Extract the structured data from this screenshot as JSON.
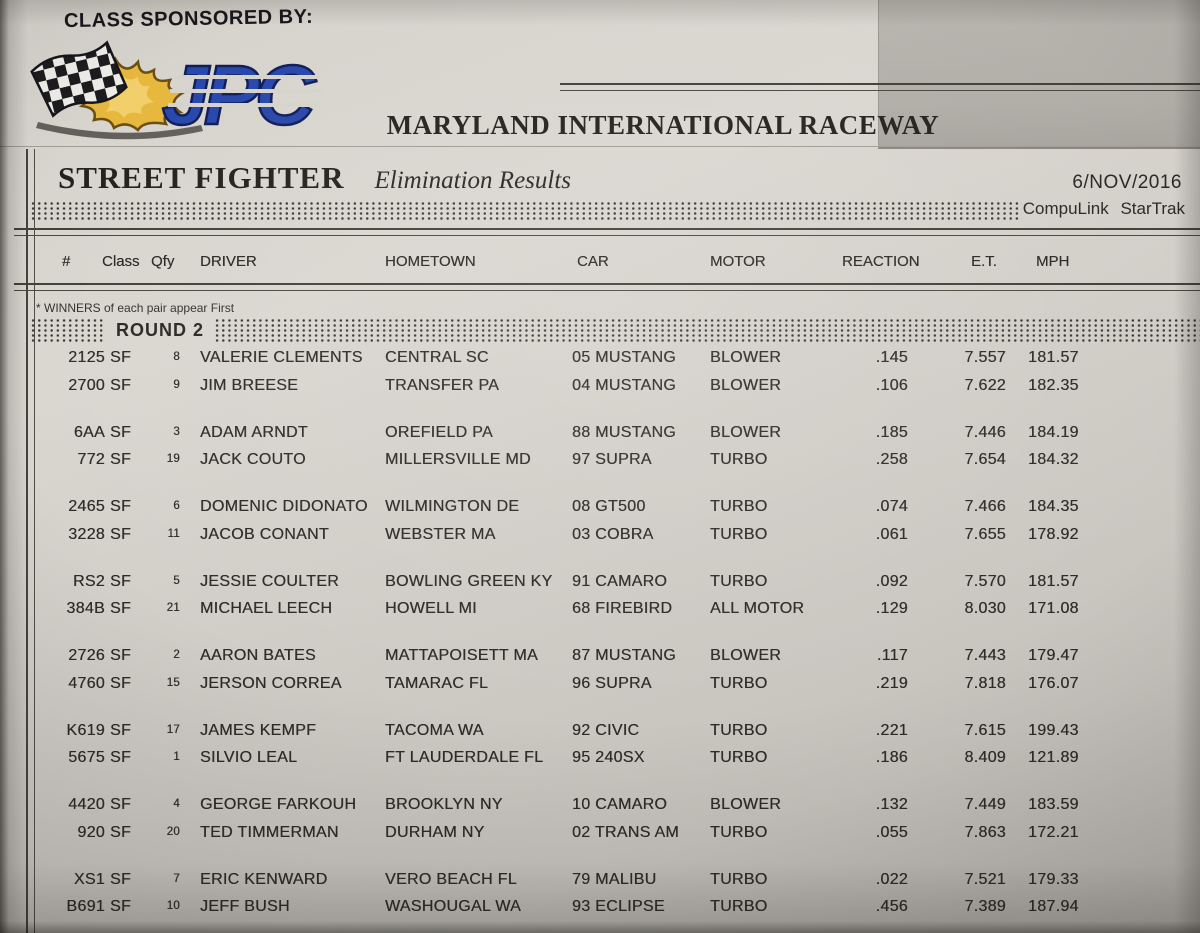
{
  "photo": {
    "paper_color": "#d6d2cc",
    "ink_color": "#2e2b27"
  },
  "header": {
    "sponsor_label": "CLASS SPONSORED BY:",
    "logo": {
      "text": "JPC",
      "blue": "#2847ab",
      "flame_gold": "#e7b83e"
    },
    "track_name": "MARYLAND INTERNATIONAL RACEWAY"
  },
  "report": {
    "class_name": "STREET FIGHTER",
    "title": "Elimination Results",
    "date": "6/NOV/2016",
    "timing_system": "CompuLink StarTrak"
  },
  "table": {
    "columns": [
      "#",
      "Class",
      "Qfy",
      "DRIVER",
      "HOMETOWN",
      "CAR",
      "MOTOR",
      "REACTION",
      "E.T.",
      "MPH"
    ],
    "winners_note": "* WINNERS of each pair appear First",
    "round_label": "ROUND 2",
    "pairs": [
      [
        [
          "2125",
          "SF",
          "8",
          "VALERIE CLEMENTS",
          "CENTRAL SC",
          "05 MUSTANG",
          "BLOWER",
          ".145",
          "7.557",
          "181.57"
        ],
        [
          "2700",
          "SF",
          "9",
          "JIM BREESE",
          "TRANSFER PA",
          "04 MUSTANG",
          "BLOWER",
          ".106",
          "7.622",
          "182.35"
        ]
      ],
      [
        [
          "6AA",
          "SF",
          "3",
          "ADAM ARNDT",
          "OREFIELD PA",
          "88 MUSTANG",
          "BLOWER",
          ".185",
          "7.446",
          "184.19"
        ],
        [
          "772",
          "SF",
          "19",
          "JACK COUTO",
          "MILLERSVILLE MD",
          "97 SUPRA",
          "TURBO",
          ".258",
          "7.654",
          "184.32"
        ]
      ],
      [
        [
          "2465",
          "SF",
          "6",
          "DOMENIC DIDONATO",
          "WILMINGTON DE",
          "08 GT500",
          "TURBO",
          ".074",
          "7.466",
          "184.35"
        ],
        [
          "3228",
          "SF",
          "11",
          "JACOB CONANT",
          "WEBSTER MA",
          "03 COBRA",
          "TURBO",
          ".061",
          "7.655",
          "178.92"
        ]
      ],
      [
        [
          "RS2",
          "SF",
          "5",
          "JESSIE COULTER",
          "BOWLING GREEN KY",
          "91 CAMARO",
          "TURBO",
          ".092",
          "7.570",
          "181.57"
        ],
        [
          "384B",
          "SF",
          "21",
          "MICHAEL LEECH",
          "HOWELL MI",
          "68 FIREBIRD",
          "ALL MOTOR",
          ".129",
          "8.030",
          "171.08"
        ]
      ],
      [
        [
          "2726",
          "SF",
          "2",
          "AARON BATES",
          "MATTAPOISETT MA",
          "87 MUSTANG",
          "BLOWER",
          ".117",
          "7.443",
          "179.47"
        ],
        [
          "4760",
          "SF",
          "15",
          "JERSON CORREA",
          "TAMARAC FL",
          "96 SUPRA",
          "TURBO",
          ".219",
          "7.818",
          "176.07"
        ]
      ],
      [
        [
          "K619",
          "SF",
          "17",
          "JAMES KEMPF",
          "TACOMA WA",
          "92 CIVIC",
          "TURBO",
          ".221",
          "7.615",
          "199.43"
        ],
        [
          "5675",
          "SF",
          "1",
          "SILVIO LEAL",
          "FT LAUDERDALE FL",
          "95 240SX",
          "TURBO",
          ".186",
          "8.409",
          "121.89"
        ]
      ],
      [
        [
          "4420",
          "SF",
          "4",
          "GEORGE FARKOUH",
          "BROOKLYN NY",
          "10 CAMARO",
          "BLOWER",
          ".132",
          "7.449",
          "183.59"
        ],
        [
          "920",
          "SF",
          "20",
          "TED TIMMERMAN",
          "DURHAM NY",
          "02 TRANS AM",
          "TURBO",
          ".055",
          "7.863",
          "172.21"
        ]
      ],
      [
        [
          "XS1",
          "SF",
          "7",
          "ERIC KENWARD",
          "VERO BEACH FL",
          "79 MALIBU",
          "TURBO",
          ".022",
          "7.521",
          "179.33"
        ],
        [
          "B691",
          "SF",
          "10",
          "JEFF BUSH",
          "WASHOUGAL WA",
          "93 ECLIPSE",
          "TURBO",
          ".456",
          "7.389",
          "187.94"
        ]
      ]
    ]
  }
}
